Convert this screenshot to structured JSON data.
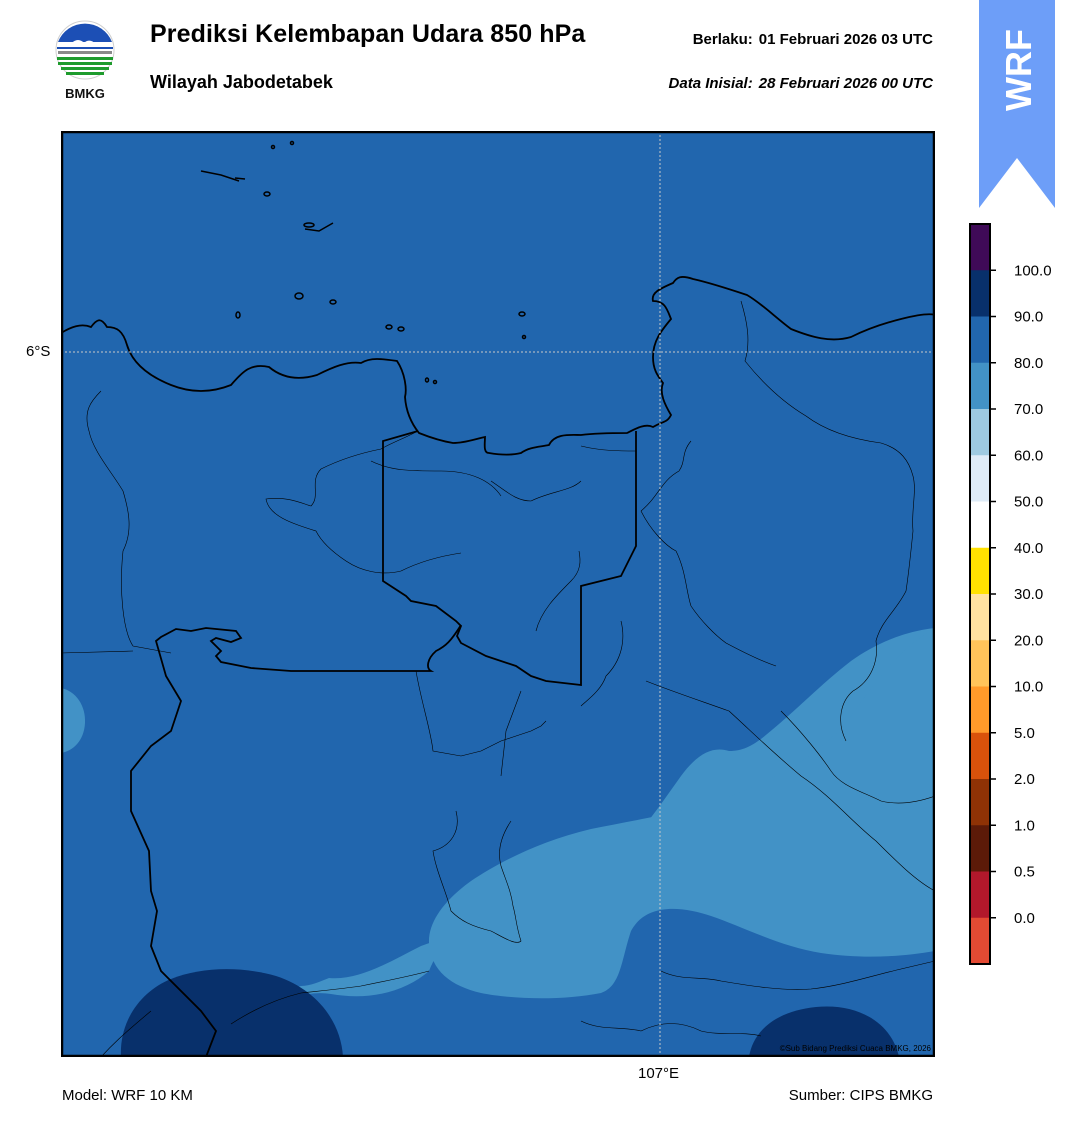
{
  "header": {
    "title": "Prediksi Kelembapan Udara 850 hPa",
    "region": "Wilayah Jabodetabek",
    "valid_label": "Berlaku:",
    "valid_value": "01 Februari 2026 03 UTC",
    "init_label": "Data Inisial:",
    "init_value": "28 Februari 2026 00 UTC"
  },
  "logo": {
    "text": "BMKG",
    "icon": "bmkg-logo-icon"
  },
  "badge": {
    "text": "WRF",
    "color": "#6d9ef8"
  },
  "map": {
    "lat_label": "6°S",
    "lon_label": "107°E",
    "credit": "©Sub Bidang Prediksi Cuaca BMKG, 2026",
    "base_color": "#2166ae",
    "band_color": "#4292c6",
    "dark_color": "#08306b"
  },
  "colorbar": {
    "labels": [
      "100.0",
      "90.0",
      "80.0",
      "70.0",
      "60.0",
      "50.0",
      "40.0",
      "30.0",
      "20.0",
      "10.0",
      "5.0",
      "2.0",
      "1.0",
      "0.5",
      "0.0"
    ],
    "colors_top_to_bottom": [
      "#3f0a57",
      "#08306b",
      "#2166ae",
      "#4292c6",
      "#9ecae1",
      "#deebf7",
      "#ffffff",
      "#ffe100",
      "#ffe2a0",
      "#ffc45a",
      "#ff9a2a",
      "#d9520b",
      "#8f3205",
      "#5c1a08",
      "#b2182b",
      "#e34a33"
    ]
  },
  "footer": {
    "model": "Model: WRF 10 KM",
    "source": "Sumber: CIPS BMKG"
  }
}
